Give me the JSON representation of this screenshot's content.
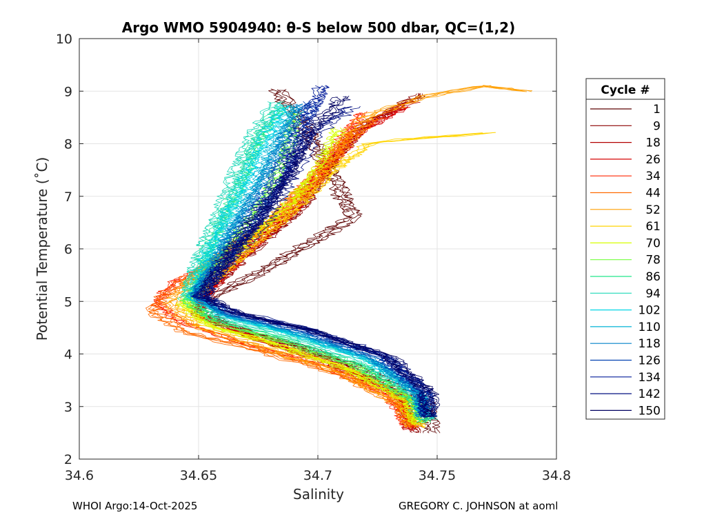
{
  "chart_data": {
    "type": "line",
    "title": "Argo WMO 5904940: θ-S below 500 dbar,  QC=(1,2)",
    "xlabel": "Salinity",
    "ylabel": "Potential Temperature (˚C)",
    "xlim": [
      34.6,
      34.8
    ],
    "ylim": [
      2,
      10
    ],
    "xticks": [
      34.6,
      34.65,
      34.7,
      34.75,
      34.8
    ],
    "xtick_labels": [
      "34.6",
      "34.65",
      "34.7",
      "34.75",
      "34.8"
    ],
    "yticks": [
      2,
      3,
      4,
      5,
      6,
      7,
      8,
      9,
      10
    ],
    "ytick_labels": [
      "2",
      "3",
      "4",
      "5",
      "6",
      "7",
      "8",
      "9",
      "10"
    ],
    "grid": true,
    "legend_title": "Cycle #",
    "legend_position": "right, outside plot",
    "series": [
      {
        "name": "1",
        "color": "#5c0000",
        "points": [
          [
            34.683,
            9.03
          ],
          [
            34.695,
            8.3
          ],
          [
            34.705,
            7.5
          ],
          [
            34.715,
            6.6
          ],
          [
            34.678,
            5.6
          ],
          [
            34.65,
            4.95
          ],
          [
            34.66,
            4.55
          ],
          [
            34.69,
            4.2
          ],
          [
            34.72,
            3.7
          ],
          [
            34.745,
            3.1
          ],
          [
            34.748,
            2.5
          ]
        ]
      },
      {
        "name": "9",
        "color": "#8b0000",
        "points": [
          [
            34.745,
            8.95
          ],
          [
            34.722,
            8.4
          ],
          [
            34.708,
            7.7
          ],
          [
            34.695,
            6.8
          ],
          [
            34.672,
            5.9
          ],
          [
            34.655,
            5.2
          ],
          [
            34.652,
            4.75
          ],
          [
            34.68,
            4.3
          ],
          [
            34.71,
            3.85
          ],
          [
            34.737,
            3.2
          ],
          [
            34.742,
            2.5
          ]
        ]
      },
      {
        "name": "18",
        "color": "#b20000",
        "points": [
          [
            34.74,
            8.8
          ],
          [
            34.718,
            8.3
          ],
          [
            34.705,
            7.6
          ],
          [
            34.692,
            6.8
          ],
          [
            34.67,
            5.95
          ],
          [
            34.655,
            5.2
          ],
          [
            34.65,
            4.75
          ],
          [
            34.675,
            4.3
          ],
          [
            34.705,
            3.85
          ],
          [
            34.735,
            3.2
          ],
          [
            34.74,
            2.55
          ]
        ]
      },
      {
        "name": "26",
        "color": "#d60000",
        "points": [
          [
            34.735,
            8.7
          ],
          [
            34.715,
            8.2
          ],
          [
            34.702,
            7.5
          ],
          [
            34.688,
            6.7
          ],
          [
            34.668,
            5.9
          ],
          [
            34.652,
            5.2
          ],
          [
            34.648,
            4.75
          ],
          [
            34.672,
            4.3
          ],
          [
            34.702,
            3.85
          ],
          [
            34.733,
            3.2
          ],
          [
            34.738,
            2.55
          ]
        ]
      },
      {
        "name": "34",
        "color": "#ff2600",
        "points": [
          [
            34.718,
            8.6
          ],
          [
            34.71,
            8.1
          ],
          [
            34.698,
            7.4
          ],
          [
            34.682,
            6.6
          ],
          [
            34.655,
            5.7
          ],
          [
            34.64,
            5.4
          ],
          [
            34.632,
            5.0
          ],
          [
            34.64,
            4.65
          ],
          [
            34.665,
            4.25
          ],
          [
            34.7,
            3.8
          ],
          [
            34.73,
            3.2
          ],
          [
            34.738,
            2.6
          ]
        ]
      },
      {
        "name": "44",
        "color": "#ff6a00",
        "points": [
          [
            34.725,
            8.5
          ],
          [
            34.712,
            8.05
          ],
          [
            34.7,
            7.3
          ],
          [
            34.68,
            6.5
          ],
          [
            34.65,
            5.6
          ],
          [
            34.635,
            5.1
          ],
          [
            34.63,
            4.8
          ],
          [
            34.645,
            4.4
          ],
          [
            34.672,
            4.1
          ],
          [
            34.71,
            3.6
          ],
          [
            34.735,
            3.0
          ],
          [
            34.74,
            2.6
          ]
        ]
      },
      {
        "name": "52",
        "color": "#ff9f00",
        "points": [
          [
            34.788,
            9.0
          ],
          [
            34.77,
            9.1
          ],
          [
            34.745,
            8.9
          ],
          [
            34.72,
            8.5
          ],
          [
            34.7,
            7.4
          ],
          [
            34.68,
            6.5
          ],
          [
            34.66,
            5.9
          ],
          [
            34.645,
            5.3
          ],
          [
            34.638,
            4.9
          ],
          [
            34.648,
            4.55
          ],
          [
            34.675,
            4.15
          ],
          [
            34.71,
            3.65
          ],
          [
            34.735,
            3.05
          ],
          [
            34.74,
            2.6
          ]
        ]
      },
      {
        "name": "61",
        "color": "#ffd400",
        "points": [
          [
            34.77,
            8.2
          ],
          [
            34.74,
            8.1
          ],
          [
            34.72,
            8.0
          ],
          [
            34.705,
            7.5
          ],
          [
            34.69,
            6.8
          ],
          [
            34.672,
            6.1
          ],
          [
            34.655,
            5.4
          ],
          [
            34.642,
            4.9
          ],
          [
            34.652,
            4.55
          ],
          [
            34.68,
            4.2
          ],
          [
            34.712,
            3.7
          ],
          [
            34.738,
            3.1
          ],
          [
            34.742,
            2.6
          ]
        ]
      },
      {
        "name": "70",
        "color": "#d7ff00",
        "points": [
          [
            34.71,
            8.3
          ],
          [
            34.702,
            7.6
          ],
          [
            34.69,
            6.9
          ],
          [
            34.672,
            6.15
          ],
          [
            34.655,
            5.45
          ],
          [
            34.645,
            4.95
          ],
          [
            34.655,
            4.55
          ],
          [
            34.682,
            4.2
          ],
          [
            34.714,
            3.7
          ],
          [
            34.738,
            3.1
          ],
          [
            34.742,
            2.65
          ]
        ]
      },
      {
        "name": "78",
        "color": "#73ff3c",
        "points": [
          [
            34.69,
            8.6
          ],
          [
            34.686,
            7.8
          ],
          [
            34.678,
            7.0
          ],
          [
            34.665,
            6.2
          ],
          [
            34.652,
            5.5
          ],
          [
            34.645,
            5.0
          ],
          [
            34.656,
            4.6
          ],
          [
            34.684,
            4.25
          ],
          [
            34.716,
            3.75
          ],
          [
            34.74,
            3.1
          ],
          [
            34.744,
            2.7
          ]
        ]
      },
      {
        "name": "86",
        "color": "#20e68a",
        "points": [
          [
            34.685,
            8.7
          ],
          [
            34.675,
            8.0
          ],
          [
            34.668,
            7.2
          ],
          [
            34.658,
            6.3
          ],
          [
            34.65,
            5.5
          ],
          [
            34.645,
            5.05
          ],
          [
            34.658,
            4.65
          ],
          [
            34.686,
            4.3
          ],
          [
            34.718,
            3.8
          ],
          [
            34.74,
            3.15
          ],
          [
            34.745,
            2.7
          ]
        ]
      },
      {
        "name": "94",
        "color": "#1ed8b8",
        "points": [
          [
            34.682,
            8.8
          ],
          [
            34.672,
            8.1
          ],
          [
            34.664,
            7.3
          ],
          [
            34.656,
            6.4
          ],
          [
            34.648,
            5.6
          ],
          [
            34.646,
            5.1
          ],
          [
            34.66,
            4.7
          ],
          [
            34.688,
            4.35
          ],
          [
            34.72,
            3.85
          ],
          [
            34.742,
            3.2
          ],
          [
            34.746,
            2.75
          ]
        ]
      },
      {
        "name": "102",
        "color": "#00d6e6",
        "points": [
          [
            34.686,
            8.75
          ],
          [
            34.676,
            8.05
          ],
          [
            34.668,
            7.25
          ],
          [
            34.658,
            6.4
          ],
          [
            34.65,
            5.6
          ],
          [
            34.647,
            5.1
          ],
          [
            34.66,
            4.72
          ],
          [
            34.688,
            4.38
          ],
          [
            34.72,
            3.9
          ],
          [
            34.742,
            3.25
          ],
          [
            34.744,
            2.8
          ]
        ]
      },
      {
        "name": "110",
        "color": "#00b3d6",
        "points": [
          [
            34.69,
            8.7
          ],
          [
            34.682,
            8.0
          ],
          [
            34.674,
            7.2
          ],
          [
            34.664,
            6.4
          ],
          [
            34.654,
            5.6
          ],
          [
            34.648,
            5.1
          ],
          [
            34.662,
            4.72
          ],
          [
            34.69,
            4.4
          ],
          [
            34.722,
            3.9
          ],
          [
            34.742,
            3.25
          ],
          [
            34.744,
            2.8
          ]
        ]
      },
      {
        "name": "118",
        "color": "#0080c8",
        "points": [
          [
            34.694,
            8.75
          ],
          [
            34.686,
            8.05
          ],
          [
            34.678,
            7.25
          ],
          [
            34.666,
            6.4
          ],
          [
            34.656,
            5.6
          ],
          [
            34.649,
            5.1
          ],
          [
            34.663,
            4.74
          ],
          [
            34.692,
            4.42
          ],
          [
            34.724,
            3.92
          ],
          [
            34.743,
            3.25
          ],
          [
            34.745,
            2.8
          ]
        ]
      },
      {
        "name": "126",
        "color": "#0040b0",
        "points": [
          [
            34.698,
            8.8
          ],
          [
            34.69,
            8.1
          ],
          [
            34.682,
            7.3
          ],
          [
            34.67,
            6.45
          ],
          [
            34.658,
            5.65
          ],
          [
            34.65,
            5.1
          ],
          [
            34.664,
            4.76
          ],
          [
            34.694,
            4.44
          ],
          [
            34.726,
            3.94
          ],
          [
            34.744,
            3.28
          ],
          [
            34.746,
            2.8
          ]
        ]
      },
      {
        "name": "134",
        "color": "#001a99",
        "points": [
          [
            34.702,
            9.1
          ],
          [
            34.694,
            8.3
          ],
          [
            34.686,
            7.4
          ],
          [
            34.674,
            6.5
          ],
          [
            34.66,
            5.65
          ],
          [
            34.651,
            5.1
          ],
          [
            34.665,
            4.78
          ],
          [
            34.696,
            4.46
          ],
          [
            34.728,
            3.96
          ],
          [
            34.745,
            3.3
          ],
          [
            34.746,
            2.8
          ]
        ]
      },
      {
        "name": "142",
        "color": "#000e80",
        "points": [
          [
            34.715,
            8.7
          ],
          [
            34.7,
            8.2
          ],
          [
            34.69,
            7.4
          ],
          [
            34.678,
            6.5
          ],
          [
            34.66,
            5.6
          ],
          [
            34.652,
            5.1
          ],
          [
            34.668,
            4.78
          ],
          [
            34.698,
            4.46
          ],
          [
            34.73,
            3.96
          ],
          [
            34.746,
            3.3
          ],
          [
            34.747,
            2.8
          ]
        ]
      },
      {
        "name": "150",
        "color": "#000060",
        "points": [
          [
            34.71,
            8.9
          ],
          [
            34.696,
            8.2
          ],
          [
            34.686,
            7.3
          ],
          [
            34.672,
            6.45
          ],
          [
            34.658,
            5.6
          ],
          [
            34.651,
            5.1
          ],
          [
            34.666,
            4.77
          ],
          [
            34.697,
            4.45
          ],
          [
            34.729,
            3.95
          ],
          [
            34.746,
            3.3
          ],
          [
            34.747,
            2.8
          ]
        ]
      }
    ]
  },
  "footer": {
    "left": "WHOI Argo:14-Oct-2025",
    "right": "GREGORY C. JOHNSON at aoml"
  }
}
